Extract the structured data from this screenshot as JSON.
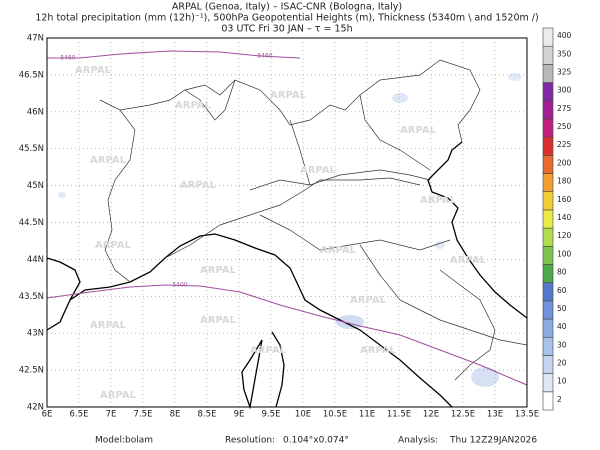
{
  "map": {
    "header": [
      "ARPAL (Genoa, Italy)  –  ISAC-CNR (Bologna, Italy)",
      "12h total precipitation (mm (12h)⁻¹), 500hPa Geopotential Heights (m), Thickness (5340m \\ and 1520m /)",
      "03 UTC Fri 30 JAN  –  τ = 15h"
    ],
    "watermark": "ARPAL",
    "xlim": [
      6,
      13.5
    ],
    "ylim": [
      42,
      47
    ],
    "xticks": [
      {
        "value": 6,
        "label": "6E"
      },
      {
        "value": 6.5,
        "label": "6.5E"
      },
      {
        "value": 7,
        "label": "7E"
      },
      {
        "value": 7.5,
        "label": "7.5E"
      },
      {
        "value": 8,
        "label": "8E"
      },
      {
        "value": 8.5,
        "label": "8.5E"
      },
      {
        "value": 9,
        "label": "9E"
      },
      {
        "value": 9.5,
        "label": "9.5E"
      },
      {
        "value": 10,
        "label": "10E"
      },
      {
        "value": 10.5,
        "label": "10.5E"
      },
      {
        "value": 11,
        "label": "11E"
      },
      {
        "value": 11.5,
        "label": "11.5E"
      },
      {
        "value": 12,
        "label": "12E"
      },
      {
        "value": 12.5,
        "label": "12.5E"
      },
      {
        "value": 13,
        "label": "13E"
      },
      {
        "value": 13.5,
        "label": "13.5E"
      }
    ],
    "yticks": [
      {
        "value": 42,
        "label": "42N"
      },
      {
        "value": 42.5,
        "label": "42.5N"
      },
      {
        "value": 43,
        "label": "43N"
      },
      {
        "value": 43.5,
        "label": "43.5N"
      },
      {
        "value": 44,
        "label": "44N"
      },
      {
        "value": 44.5,
        "label": "44.5N"
      },
      {
        "value": 45,
        "label": "45N"
      },
      {
        "value": 45.5,
        "label": "45.5N"
      },
      {
        "value": 46,
        "label": "46N"
      },
      {
        "value": 46.5,
        "label": "46.5N"
      },
      {
        "value": 47,
        "label": "47N"
      }
    ],
    "grid": true,
    "contours": [
      {
        "value": 5460,
        "color": "#a050a0"
      },
      {
        "value": 5400,
        "color": "#a050a0"
      }
    ],
    "colorbar": {
      "levels": [
        2,
        10,
        20,
        30,
        40,
        50,
        60,
        80,
        100,
        120,
        140,
        160,
        180,
        200,
        225,
        250,
        275,
        300,
        325,
        350,
        400
      ],
      "colors": [
        "#ffffff",
        "#dfe8f6",
        "#c6d6f0",
        "#a9c2ea",
        "#8cabe2",
        "#6f92d8",
        "#5278c8",
        "#4ea84c",
        "#7cc452",
        "#b2dc52",
        "#eaea48",
        "#f2cc3a",
        "#f0a030",
        "#e86a2e",
        "#d83030",
        "#c02080",
        "#a02094",
        "#8028a4",
        "#b8b8b8",
        "#d4d4d4",
        "#ececec"
      ]
    },
    "footer": [
      {
        "label": "Model:",
        "value": "bolam"
      },
      {
        "label": "Resolution:",
        "value": "0.104°x0.074°"
      },
      {
        "label": "Analysis:",
        "value": "Thu 12Z29JAN2026"
      }
    ]
  }
}
